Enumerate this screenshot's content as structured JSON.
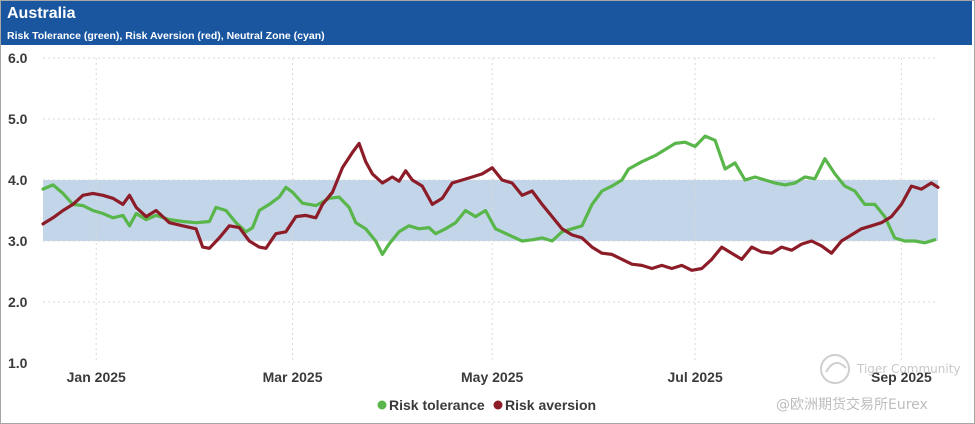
{
  "header": {
    "title": "Australia",
    "subtitle": "Risk Tolerance (green), Risk Aversion (red), Neutral Zone (cyan)"
  },
  "watermark": {
    "line1": "Tiger Community",
    "line2": "@欧洲期货交易所Eurex"
  },
  "chart_data": {
    "type": "line",
    "title": "Australia",
    "subtitle": "Risk Tolerance (green), Risk Aversion (red), Neutral Zone (cyan)",
    "xlabel": "",
    "ylabel": "",
    "ylim": [
      1.0,
      6.0
    ],
    "yticks": [
      1.0,
      2.0,
      3.0,
      4.0,
      5.0,
      6.0
    ],
    "ytick_labels": [
      "1.0",
      "2.0",
      "3.0",
      "4.0",
      "5.0",
      "6.0"
    ],
    "x_domain": [
      0,
      269
    ],
    "xticks": [
      16,
      75,
      135,
      196,
      258
    ],
    "xtick_labels": [
      "Jan 2025",
      "Mar 2025",
      "May 2025",
      "Jul 2025",
      "Sep 2025"
    ],
    "grid": true,
    "legend_position": "bottom-center",
    "neutral_zone": {
      "low": 3.0,
      "high": 4.0,
      "color": "#c3d5e8"
    },
    "series": [
      {
        "name": "Risk tolerance",
        "color": "#59b64a",
        "points": [
          [
            0,
            3.85
          ],
          [
            3,
            3.92
          ],
          [
            6,
            3.78
          ],
          [
            9,
            3.6
          ],
          [
            12,
            3.58
          ],
          [
            15,
            3.5
          ],
          [
            18,
            3.45
          ],
          [
            21,
            3.38
          ],
          [
            24,
            3.42
          ],
          [
            26,
            3.25
          ],
          [
            28,
            3.45
          ],
          [
            31,
            3.35
          ],
          [
            34,
            3.42
          ],
          [
            38,
            3.35
          ],
          [
            42,
            3.32
          ],
          [
            46,
            3.3
          ],
          [
            50,
            3.32
          ],
          [
            52,
            3.55
          ],
          [
            55,
            3.5
          ],
          [
            58,
            3.3
          ],
          [
            61,
            3.15
          ],
          [
            63,
            3.22
          ],
          [
            65,
            3.5
          ],
          [
            68,
            3.6
          ],
          [
            71,
            3.72
          ],
          [
            73,
            3.88
          ],
          [
            75,
            3.8
          ],
          [
            78,
            3.62
          ],
          [
            82,
            3.58
          ],
          [
            86,
            3.7
          ],
          [
            89,
            3.72
          ],
          [
            92,
            3.55
          ],
          [
            94,
            3.3
          ],
          [
            97,
            3.2
          ],
          [
            100,
            3.0
          ],
          [
            102,
            2.78
          ],
          [
            104,
            2.95
          ],
          [
            107,
            3.15
          ],
          [
            110,
            3.25
          ],
          [
            113,
            3.2
          ],
          [
            116,
            3.22
          ],
          [
            118,
            3.12
          ],
          [
            121,
            3.2
          ],
          [
            124,
            3.3
          ],
          [
            127,
            3.5
          ],
          [
            130,
            3.4
          ],
          [
            133,
            3.5
          ],
          [
            136,
            3.2
          ],
          [
            140,
            3.1
          ],
          [
            144,
            3.0
          ],
          [
            147,
            3.02
          ],
          [
            150,
            3.05
          ],
          [
            153,
            3.0
          ],
          [
            156,
            3.15
          ],
          [
            159,
            3.2
          ],
          [
            162,
            3.25
          ],
          [
            165,
            3.6
          ],
          [
            168,
            3.82
          ],
          [
            171,
            3.9
          ],
          [
            174,
            4.0
          ],
          [
            176,
            4.18
          ],
          [
            180,
            4.3
          ],
          [
            184,
            4.4
          ],
          [
            187,
            4.5
          ],
          [
            190,
            4.6
          ],
          [
            193,
            4.62
          ],
          [
            196,
            4.55
          ],
          [
            199,
            4.72
          ],
          [
            202,
            4.65
          ],
          [
            205,
            4.18
          ],
          [
            208,
            4.28
          ],
          [
            211,
            4.0
          ],
          [
            214,
            4.05
          ],
          [
            217,
            4.0
          ],
          [
            220,
            3.95
          ],
          [
            223,
            3.92
          ],
          [
            226,
            3.95
          ],
          [
            229,
            4.05
          ],
          [
            232,
            4.02
          ],
          [
            235,
            4.35
          ],
          [
            238,
            4.1
          ],
          [
            241,
            3.9
          ],
          [
            244,
            3.82
          ],
          [
            247,
            3.6
          ],
          [
            250,
            3.6
          ],
          [
            253,
            3.4
          ],
          [
            256,
            3.05
          ],
          [
            259,
            3.0
          ],
          [
            262,
            3.0
          ],
          [
            265,
            2.97
          ],
          [
            268,
            3.02
          ]
        ]
      },
      {
        "name": "Risk aversion",
        "color": "#8c1d28",
        "points": [
          [
            0,
            3.28
          ],
          [
            3,
            3.38
          ],
          [
            6,
            3.5
          ],
          [
            9,
            3.6
          ],
          [
            12,
            3.75
          ],
          [
            15,
            3.78
          ],
          [
            18,
            3.75
          ],
          [
            21,
            3.7
          ],
          [
            24,
            3.6
          ],
          [
            26,
            3.75
          ],
          [
            28,
            3.55
          ],
          [
            31,
            3.4
          ],
          [
            34,
            3.5
          ],
          [
            38,
            3.3
          ],
          [
            42,
            3.25
          ],
          [
            46,
            3.2
          ],
          [
            48,
            2.9
          ],
          [
            50,
            2.88
          ],
          [
            53,
            3.05
          ],
          [
            56,
            3.25
          ],
          [
            59,
            3.22
          ],
          [
            62,
            3.0
          ],
          [
            65,
            2.9
          ],
          [
            67,
            2.88
          ],
          [
            70,
            3.12
          ],
          [
            73,
            3.15
          ],
          [
            76,
            3.4
          ],
          [
            79,
            3.42
          ],
          [
            82,
            3.38
          ],
          [
            84,
            3.6
          ],
          [
            87,
            3.8
          ],
          [
            90,
            4.2
          ],
          [
            93,
            4.45
          ],
          [
            95,
            4.6
          ],
          [
            97,
            4.3
          ],
          [
            99,
            4.1
          ],
          [
            102,
            3.95
          ],
          [
            105,
            4.05
          ],
          [
            107,
            3.98
          ],
          [
            109,
            4.15
          ],
          [
            111,
            4.0
          ],
          [
            114,
            3.9
          ],
          [
            117,
            3.6
          ],
          [
            120,
            3.7
          ],
          [
            123,
            3.95
          ],
          [
            126,
            4.0
          ],
          [
            129,
            4.05
          ],
          [
            132,
            4.1
          ],
          [
            135,
            4.2
          ],
          [
            138,
            4.0
          ],
          [
            141,
            3.95
          ],
          [
            144,
            3.75
          ],
          [
            147,
            3.82
          ],
          [
            150,
            3.6
          ],
          [
            153,
            3.4
          ],
          [
            156,
            3.2
          ],
          [
            159,
            3.1
          ],
          [
            162,
            3.05
          ],
          [
            165,
            2.9
          ],
          [
            168,
            2.8
          ],
          [
            171,
            2.78
          ],
          [
            174,
            2.7
          ],
          [
            177,
            2.62
          ],
          [
            180,
            2.6
          ],
          [
            183,
            2.55
          ],
          [
            186,
            2.6
          ],
          [
            189,
            2.55
          ],
          [
            192,
            2.6
          ],
          [
            195,
            2.52
          ],
          [
            198,
            2.55
          ],
          [
            201,
            2.7
          ],
          [
            204,
            2.9
          ],
          [
            207,
            2.8
          ],
          [
            210,
            2.7
          ],
          [
            213,
            2.9
          ],
          [
            216,
            2.82
          ],
          [
            219,
            2.8
          ],
          [
            222,
            2.9
          ],
          [
            225,
            2.85
          ],
          [
            228,
            2.95
          ],
          [
            231,
            3.0
          ],
          [
            234,
            2.92
          ],
          [
            237,
            2.8
          ],
          [
            240,
            3.0
          ],
          [
            243,
            3.1
          ],
          [
            246,
            3.2
          ],
          [
            249,
            3.25
          ],
          [
            252,
            3.3
          ],
          [
            255,
            3.4
          ],
          [
            258,
            3.6
          ],
          [
            261,
            3.9
          ],
          [
            264,
            3.85
          ],
          [
            267,
            3.95
          ],
          [
            269,
            3.88
          ]
        ]
      }
    ]
  }
}
